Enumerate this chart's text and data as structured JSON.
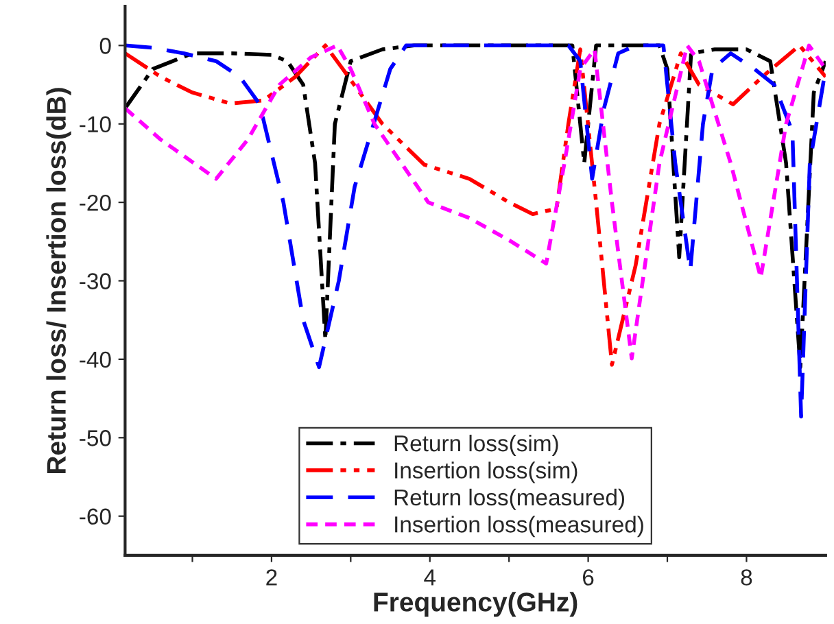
{
  "chart_data": {
    "type": "line",
    "xlabel": "Frequency(GHz)",
    "ylabel": "Return loss/ Insertion loss(dB)",
    "xlim": [
      0.15,
      9
    ],
    "xticks": [
      {
        "value": 1,
        "label": null
      },
      2,
      {
        "value": 3,
        "label": null
      },
      4,
      {
        "value": 5,
        "label": null
      },
      6,
      {
        "value": 7,
        "label": null
      },
      8
    ],
    "ylim": [
      -65,
      5
    ],
    "yticks": [
      -60,
      -50,
      -40,
      -30,
      -20,
      -10,
      0
    ],
    "legend": "bottom",
    "grid": false,
    "marker": "none",
    "series": [
      {
        "name": "Return loss(sim)",
        "color": "#000000",
        "line_style": "dashdot",
        "x": [
          0.15,
          0.5,
          1.0,
          1.5,
          2.0,
          2.2,
          2.4,
          2.55,
          2.68,
          2.8,
          3.0,
          3.4,
          3.8,
          5.0,
          5.8,
          5.95,
          6.1,
          6.3,
          6.9,
          7.0,
          7.15,
          7.3,
          7.6,
          8.0,
          8.3,
          8.5,
          8.68,
          8.85,
          9.0
        ],
        "values": [
          -8,
          -3,
          -1,
          -1,
          -1.2,
          -2,
          -5,
          -15,
          -37.5,
          -10,
          -2,
          -0.5,
          0,
          0,
          0,
          -15,
          0,
          0,
          0,
          -3,
          -27,
          -1,
          -0.5,
          -0.5,
          -2,
          -15,
          -41,
          -6,
          -2
        ]
      },
      {
        "name": "Insertion loss(sim)",
        "color": "#ff0000",
        "line_style": "dashdotdot",
        "x": [
          0.15,
          0.6,
          1.0,
          1.48,
          1.9,
          2.3,
          2.68,
          2.9,
          3.4,
          3.93,
          4.5,
          5.0,
          5.3,
          5.6,
          5.75,
          5.9,
          6.1,
          6.3,
          6.6,
          6.9,
          7.17,
          7.4,
          7.83,
          8.2,
          8.67,
          9.0
        ],
        "values": [
          -1,
          -4,
          -6,
          -7.4,
          -7,
          -4,
          0,
          -3,
          -10,
          -15.2,
          -17,
          -20,
          -21.5,
          -20.8,
          -10,
          -0.5,
          -20,
          -40.7,
          -28,
          -10,
          -1,
          -5,
          -7.5,
          -4,
          0,
          -4
        ]
      },
      {
        "name": "Return loss(measured)",
        "color": "#0000ff",
        "line_style": "dashed",
        "x": [
          0.15,
          0.5,
          0.89,
          1.3,
          1.6,
          1.85,
          2.15,
          2.4,
          2.6,
          2.85,
          3.05,
          3.29,
          3.5,
          3.7,
          5.0,
          5.75,
          5.9,
          6.05,
          6.2,
          6.38,
          6.6,
          6.95,
          7.1,
          7.29,
          7.45,
          7.57,
          7.8,
          8.1,
          8.35,
          8.58,
          8.69,
          8.8,
          9.0
        ],
        "values": [
          0,
          -0.3,
          -1,
          -2,
          -4,
          -7.5,
          -20,
          -35,
          -41,
          -30,
          -18,
          -10,
          -3,
          0,
          0,
          0,
          -2,
          -17,
          -8,
          -1,
          0,
          0,
          -15,
          -28.7,
          -10,
          -3,
          -1,
          -3,
          -5,
          -11,
          -47.3,
          -15,
          -3
        ]
      },
      {
        "name": "Insertion loss(measured)",
        "color": "#ff00ff",
        "line_style": "dotted",
        "x": [
          0.15,
          0.6,
          1.3,
          1.7,
          2.1,
          2.5,
          2.83,
          3.0,
          3.3,
          3.98,
          4.5,
          5.03,
          5.47,
          5.7,
          5.9,
          6.08,
          6.3,
          6.55,
          6.9,
          7.25,
          7.4,
          7.8,
          8.18,
          8.5,
          8.79,
          9.0
        ],
        "values": [
          -8,
          -12,
          -17,
          -12,
          -5,
          -1.5,
          0,
          -3,
          -10,
          -20,
          -22,
          -25,
          -27.8,
          -15,
          -3,
          -0.5,
          -20,
          -39.9,
          -15,
          0,
          -2,
          -15,
          -29.6,
          -10,
          0,
          -3
        ]
      }
    ]
  }
}
